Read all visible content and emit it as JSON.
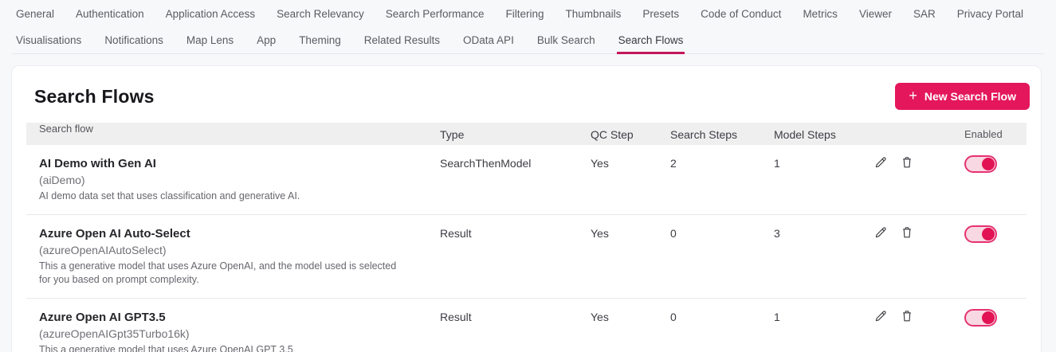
{
  "nav": {
    "row1": [
      "General",
      "Authentication",
      "Application Access",
      "Search Relevancy",
      "Search Performance",
      "Filtering",
      "Thumbnails",
      "Presets",
      "Code of Conduct",
      "Metrics",
      "Viewer",
      "SAR",
      "Privacy Portal"
    ],
    "row2": [
      "Visualisations",
      "Notifications",
      "Map Lens",
      "App",
      "Theming",
      "Related Results",
      "OData API",
      "Bulk Search",
      "Search Flows"
    ],
    "active_tab": "Search Flows"
  },
  "page": {
    "title": "Search Flows",
    "new_button_plus": "+",
    "new_button_label": "New Search Flow"
  },
  "table": {
    "headers": {
      "name": "Search flow",
      "type": "Type",
      "qc": "QC Step",
      "search_steps": "Search Steps",
      "model_steps": "Model Steps",
      "enabled": "Enabled"
    },
    "rows": [
      {
        "name": "AI Demo with Gen AI",
        "id": "(aiDemo)",
        "description": "AI demo data set that uses classification and generative AI.",
        "type": "SearchThenModel",
        "qc": "Yes",
        "search_steps": "2",
        "model_steps": "1",
        "enabled": true
      },
      {
        "name": "Azure Open AI Auto-Select",
        "id": "(azureOpenAIAutoSelect)",
        "description": "This a generative model that uses Azure OpenAI, and the model used is selected for you based on prompt complexity.",
        "type": "Result",
        "qc": "Yes",
        "search_steps": "0",
        "model_steps": "3",
        "enabled": true
      },
      {
        "name": "Azure Open AI GPT3.5",
        "id": "(azureOpenAIGpt35Turbo16k)",
        "description": "This a generative model that uses Azure OpenAI GPT 3.5",
        "type": "Result",
        "qc": "Yes",
        "search_steps": "0",
        "model_steps": "1",
        "enabled": true
      }
    ]
  },
  "colors": {
    "accent": "#e4175c",
    "active_tab_underline": "#c4175c",
    "toggle_track": "#f8d8e2",
    "toggle_border": "#e63272",
    "toggle_knob": "#e21355",
    "table_header_bg": "#efefef"
  }
}
